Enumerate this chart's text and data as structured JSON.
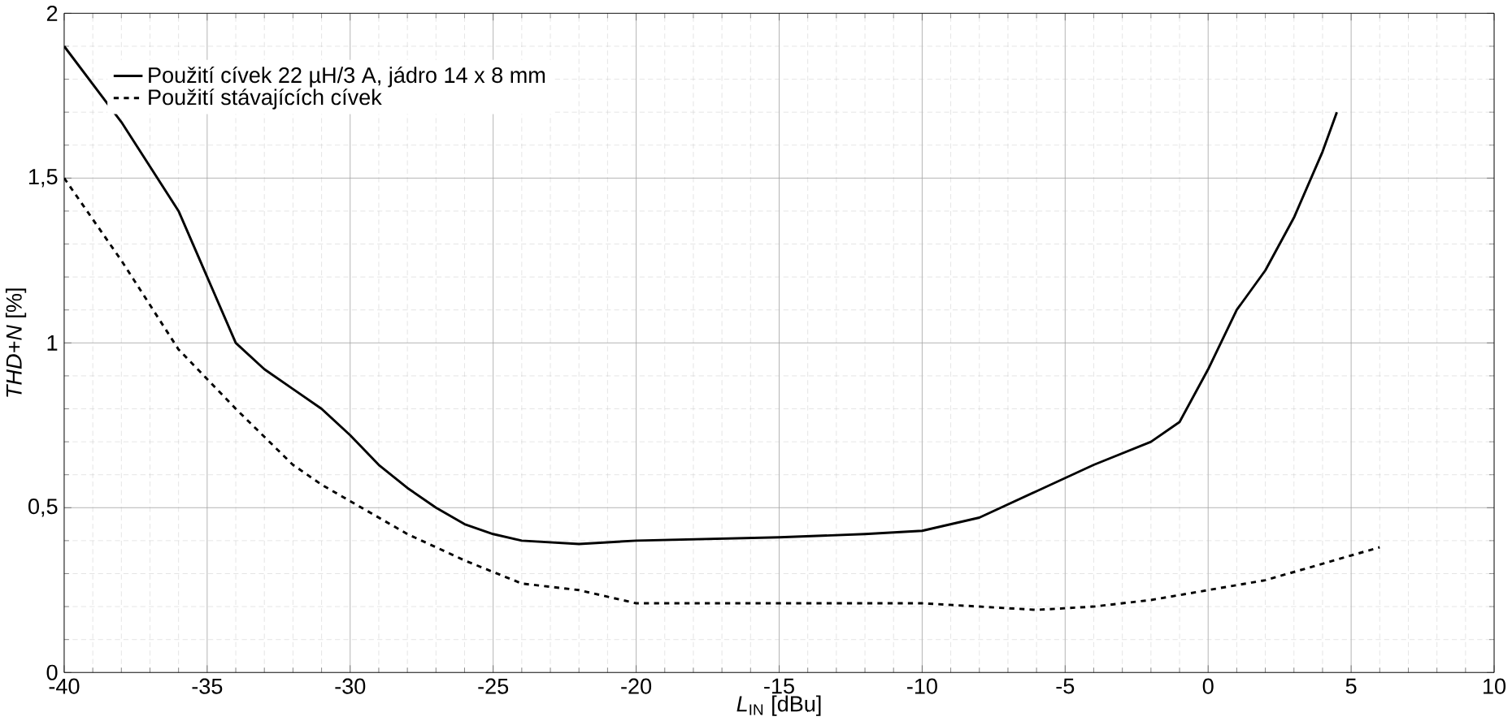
{
  "chart_data": {
    "type": "line",
    "xlabel": "*L*$_{IN}$ [dBu]",
    "ylabel": "*THD+N* [%]",
    "xlim": [
      -40,
      10
    ],
    "ylim": [
      0,
      2
    ],
    "xticks": [
      -40,
      -35,
      -30,
      -25,
      -20,
      -15,
      -10,
      -5,
      0,
      5,
      10
    ],
    "yticks": [
      0,
      {
        "value": 0.5,
        "label": "0,5"
      },
      1,
      {
        "value": 1.5,
        "label": "1,5"
      },
      2
    ],
    "grid": true,
    "legend": "top left",
    "marker": "none",
    "series": [
      {
        "name": "Použití cívek 22 µH/3 A, jádro 14 x 8 mm",
        "color": "#000000",
        "line_style": "solid",
        "x": [
          -40,
          -38,
          -36,
          -34,
          -33,
          -32,
          -31,
          -30,
          -29,
          -28,
          -27,
          -26,
          -25,
          -24,
          -22,
          -20,
          -15,
          -12,
          -10,
          -8,
          -6,
          -4,
          -2,
          -1,
          0,
          1,
          2,
          3,
          4,
          4.5
        ],
        "values": [
          1.9,
          1.67,
          1.4,
          1.0,
          0.92,
          0.86,
          0.8,
          0.72,
          0.63,
          0.56,
          0.5,
          0.45,
          0.42,
          0.4,
          0.39,
          0.4,
          0.41,
          0.42,
          0.43,
          0.47,
          0.55,
          0.63,
          0.7,
          0.76,
          0.92,
          1.1,
          1.22,
          1.38,
          1.58,
          1.7
        ]
      },
      {
        "name": "Použití stávajících cívek",
        "color": "#000000",
        "line_style": "dashed",
        "x": [
          -40,
          -38,
          -36,
          -34,
          -32,
          -31,
          -30,
          -28,
          -26,
          -24,
          -22,
          -20,
          -15,
          -10,
          -8,
          -6,
          -4,
          -2,
          0,
          2,
          4,
          6
        ],
        "values": [
          1.5,
          1.25,
          0.98,
          0.8,
          0.63,
          0.57,
          0.52,
          0.42,
          0.34,
          0.27,
          0.25,
          0.21,
          0.21,
          0.21,
          0.2,
          0.19,
          0.2,
          0.22,
          0.25,
          0.28,
          0.33,
          0.38
        ]
      }
    ]
  }
}
